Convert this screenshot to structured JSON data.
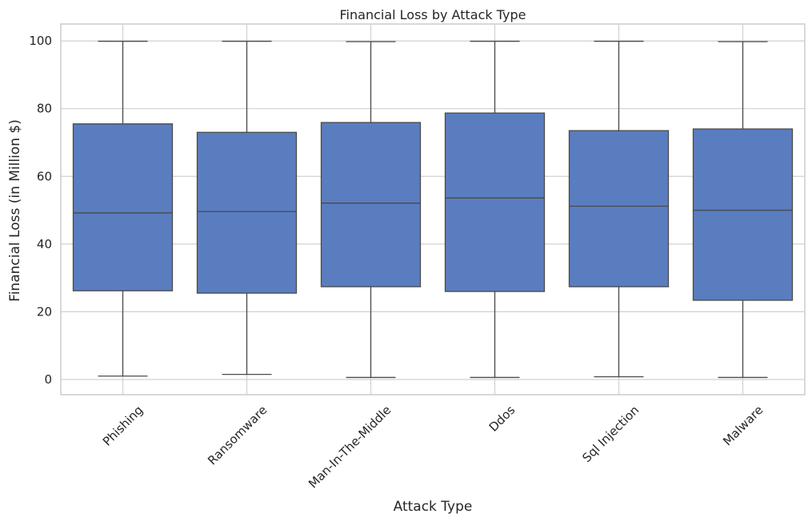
{
  "chart_data": {
    "type": "box",
    "title": "Financial Loss by Attack Type",
    "xlabel": "Attack Type",
    "ylabel": "Financial Loss (in Million $)",
    "ylim": [
      -4.5,
      105
    ],
    "yticks": [
      0,
      20,
      40,
      60,
      80,
      100
    ],
    "grid": true,
    "categories": [
      "Phishing",
      "Ransomware",
      "Man-In-The-Middle",
      "Ddos",
      "Sql Injection",
      "Malware"
    ],
    "boxes": [
      {
        "whisker_low": 1.0,
        "q1": 26.2,
        "median": 49.2,
        "q3": 75.5,
        "whisker_high": 99.9
      },
      {
        "whisker_low": 1.5,
        "q1": 25.5,
        "median": 49.6,
        "q3": 73.0,
        "whisker_high": 99.9
      },
      {
        "whisker_low": 0.6,
        "q1": 27.4,
        "median": 52.1,
        "q3": 75.9,
        "whisker_high": 99.8
      },
      {
        "whisker_low": 0.6,
        "q1": 26.0,
        "median": 53.6,
        "q3": 78.7,
        "whisker_high": 99.9
      },
      {
        "whisker_low": 0.8,
        "q1": 27.4,
        "median": 51.2,
        "q3": 73.5,
        "whisker_high": 99.9
      },
      {
        "whisker_low": 0.6,
        "q1": 23.4,
        "median": 50.0,
        "q3": 74.0,
        "whisker_high": 99.8
      }
    ],
    "colors": {
      "box_fill": "#5a7dc0",
      "line": "#4a4a4a",
      "grid": "#d0d0d0",
      "frame": "#cccccc"
    }
  }
}
